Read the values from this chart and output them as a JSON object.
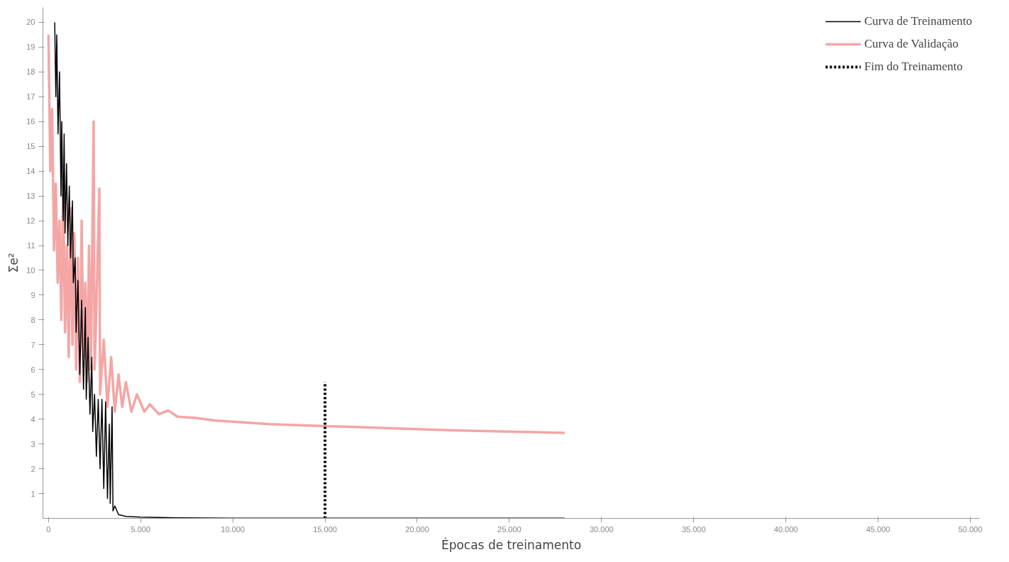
{
  "chart_data": {
    "type": "line",
    "xlabel": "Épocas de treinamento",
    "ylabel": "Σe²",
    "xlim": [
      -300,
      50500
    ],
    "ylim": [
      0,
      20.6
    ],
    "xticks": [
      {
        "value": 0,
        "label": "0"
      },
      {
        "value": 5000,
        "label": "5.000"
      },
      {
        "value": 10000,
        "label": "10.000"
      },
      {
        "value": 15000,
        "label": "15.000"
      },
      {
        "value": 20000,
        "label": "20.000"
      },
      {
        "value": 25000,
        "label": "25.000"
      },
      {
        "value": 30000,
        "label": "30.000"
      },
      {
        "value": 35000,
        "label": "35.000"
      },
      {
        "value": 40000,
        "label": "40.000"
      },
      {
        "value": 45000,
        "label": "45.000"
      },
      {
        "value": 50000,
        "label": "50.000"
      }
    ],
    "yticks": [
      1,
      2,
      3,
      4,
      5,
      6,
      7,
      8,
      9,
      10,
      11,
      12,
      13,
      14,
      15,
      16,
      17,
      18,
      19,
      20
    ],
    "grid": false,
    "legend": "top right",
    "marker": "none",
    "series": [
      {
        "name": "Curva de Validação",
        "color": "#f4a6a6",
        "line_style": "solid",
        "x": [
          0,
          100,
          200,
          300,
          400,
          500,
          600,
          700,
          800,
          900,
          1000,
          1100,
          1200,
          1300,
          1400,
          1500,
          1600,
          1700,
          1800,
          1900,
          2000,
          2100,
          2200,
          2300,
          2450,
          2500,
          2600,
          2760,
          2800,
          3000,
          3200,
          3400,
          3600,
          3800,
          4000,
          4200,
          4500,
          4800,
          5200,
          5500,
          6000,
          6500,
          7000,
          8000,
          9000,
          10000,
          12000,
          15000,
          18000,
          22000,
          25000,
          28000
        ],
        "values": [
          19.5,
          14,
          16.5,
          10.8,
          13.5,
          9.5,
          12,
          8,
          13.5,
          7.5,
          11,
          6.5,
          12.5,
          7,
          11.5,
          6,
          10.5,
          5.5,
          12,
          6.5,
          9.5,
          5.5,
          11,
          6,
          16,
          6,
          8.5,
          13.3,
          5,
          7.2,
          4.5,
          6.5,
          4.3,
          5.8,
          4.5,
          5.5,
          4.3,
          5,
          4.3,
          4.6,
          4.2,
          4.35,
          4.1,
          4.05,
          3.95,
          3.9,
          3.8,
          3.72,
          3.65,
          3.55,
          3.5,
          3.45
        ]
      },
      {
        "name": "Curva de Treinamento",
        "color": "#000000",
        "line_style": "solid",
        "x": [
          340,
          400,
          450,
          520,
          600,
          680,
          720,
          800,
          850,
          900,
          980,
          1050,
          1130,
          1200,
          1300,
          1350,
          1450,
          1500,
          1600,
          1700,
          1800,
          1900,
          2000,
          2050,
          2150,
          2250,
          2350,
          2400,
          2500,
          2600,
          2700,
          2800,
          2900,
          3000,
          3100,
          3200,
          3300,
          3350,
          3450,
          3500,
          3600,
          3800,
          4200,
          5000,
          7000,
          10000,
          28000
        ],
        "values": [
          20,
          17,
          19.5,
          15.5,
          18,
          13,
          16,
          12,
          15.5,
          11.5,
          14.3,
          11,
          13.4,
          10.5,
          12.8,
          9.5,
          10.5,
          7.5,
          9.6,
          5.8,
          8.8,
          5.2,
          8.5,
          4.8,
          7.3,
          4.2,
          6.5,
          3.5,
          5,
          2.5,
          4.8,
          2,
          4.8,
          1.2,
          4.7,
          0.8,
          3.8,
          0.6,
          4.5,
          0.3,
          0.5,
          0.15,
          0.08,
          0.05,
          0.02,
          0.01,
          0.01
        ]
      },
      {
        "name": "Fim do Treinamento",
        "color": "#000000",
        "line_style": "dotted",
        "x": [
          15000,
          15000
        ],
        "values": [
          0,
          5.5
        ]
      }
    ]
  }
}
